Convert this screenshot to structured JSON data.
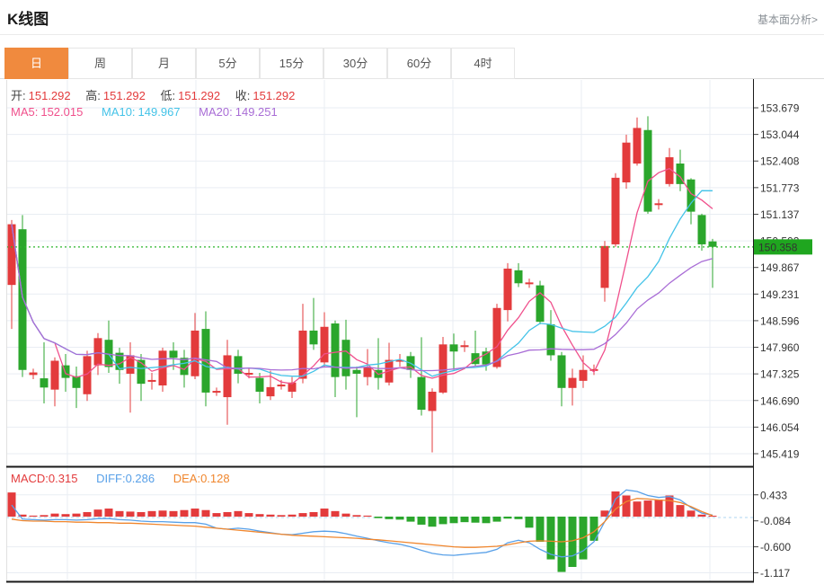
{
  "header": {
    "title": "K线图",
    "link": "基本面分析>"
  },
  "tabs": {
    "items": [
      {
        "label": "日",
        "active": true
      },
      {
        "label": "周",
        "active": false
      },
      {
        "label": "月",
        "active": false
      },
      {
        "label": "5分",
        "active": false
      },
      {
        "label": "15分",
        "active": false
      },
      {
        "label": "30分",
        "active": false
      },
      {
        "label": "60分",
        "active": false
      },
      {
        "label": "4时",
        "active": false
      }
    ]
  },
  "readout": {
    "ohlc_value_color": "#e33b3c",
    "ohlc": [
      {
        "label": "开:",
        "value": "151.292"
      },
      {
        "label": "高:",
        "value": "151.292"
      },
      {
        "label": "低:",
        "value": "151.292"
      },
      {
        "label": "收:",
        "value": "151.292"
      }
    ],
    "ma": [
      {
        "label": "MA5:",
        "value": "152.015",
        "color": "#f0508c"
      },
      {
        "label": "MA10:",
        "value": "149.967",
        "color": "#44c3e8"
      },
      {
        "label": "MA20:",
        "value": "149.251",
        "color": "#a96dd6"
      }
    ],
    "macd": [
      {
        "label": "MACD:",
        "value": "0.315",
        "color": "#e33b3c"
      },
      {
        "label": "DIFF:",
        "value": "0.286",
        "color": "#58a0e8"
      },
      {
        "label": "DEA:",
        "value": "0.128",
        "color": "#f0862d"
      }
    ]
  },
  "colors": {
    "up": "#e33b3c",
    "down": "#2ba62c",
    "ma5": "#f0508c",
    "ma10": "#44c3e8",
    "ma20": "#a96dd6",
    "diff": "#58a0e8",
    "dea": "#f0862d",
    "grid": "#e9edf3",
    "zero_dash": "#aed5f2",
    "price_line": "#2db52d",
    "tag_bg": "#1fa61f",
    "tag_text": "#ffffff",
    "axis_text": "#333333",
    "border_dark": "#1a1a1a",
    "border_light": "#e0e0e0"
  },
  "chart_data": {
    "type": "candlestick",
    "title": "K线图",
    "legend": [
      "MA5",
      "MA10",
      "MA20",
      "MACD",
      "DIFF",
      "DEA"
    ],
    "price_axis_labels": [
      "153.679",
      "153.044",
      "152.408",
      "151.773",
      "151.137",
      "150.502",
      "149.867",
      "149.231",
      "148.596",
      "147.960",
      "147.325",
      "146.690",
      "146.054",
      "145.419"
    ],
    "current_price": "150.358",
    "candle_format": "[open, close, low, high]",
    "candles": [
      [
        149.45,
        150.9,
        148.4,
        151.0
      ],
      [
        150.78,
        147.42,
        147.25,
        151.12
      ],
      [
        147.3,
        147.36,
        147.2,
        147.45
      ],
      [
        147.22,
        147.0,
        146.62,
        148.08
      ],
      [
        146.95,
        147.64,
        146.55,
        147.72
      ],
      [
        147.53,
        147.23,
        146.9,
        147.8
      ],
      [
        147.27,
        146.99,
        146.51,
        147.5
      ],
      [
        146.84,
        147.75,
        146.68,
        147.88
      ],
      [
        147.53,
        148.18,
        147.3,
        148.3
      ],
      [
        148.14,
        147.49,
        147.35,
        148.6
      ],
      [
        147.83,
        147.42,
        147.09,
        147.95
      ],
      [
        147.33,
        147.77,
        146.4,
        148.08
      ],
      [
        147.66,
        147.09,
        146.68,
        147.8
      ],
      [
        147.14,
        147.18,
        146.95,
        147.35
      ],
      [
        147.05,
        147.88,
        146.9,
        147.95
      ],
      [
        147.88,
        147.71,
        147.42,
        148.08
      ],
      [
        147.71,
        147.3,
        147.0,
        147.9
      ],
      [
        147.27,
        148.36,
        147.2,
        148.78
      ],
      [
        148.4,
        146.88,
        146.55,
        148.82
      ],
      [
        146.88,
        146.92,
        146.8,
        147.0
      ],
      [
        146.77,
        147.77,
        146.11,
        148.14
      ],
      [
        147.75,
        147.33,
        147.1,
        147.9
      ],
      [
        147.31,
        147.35,
        147.22,
        147.45
      ],
      [
        147.23,
        146.9,
        146.62,
        147.35
      ],
      [
        146.79,
        147.01,
        146.7,
        147.4
      ],
      [
        147.03,
        147.07,
        146.95,
        147.18
      ],
      [
        146.9,
        147.12,
        146.75,
        147.25
      ],
      [
        147.21,
        148.36,
        147.1,
        149.0
      ],
      [
        148.36,
        148.03,
        147.9,
        149.14
      ],
      [
        147.6,
        148.45,
        147.5,
        148.8
      ],
      [
        148.53,
        147.25,
        146.77,
        148.6
      ],
      [
        148.14,
        147.27,
        146.95,
        148.62
      ],
      [
        147.42,
        147.33,
        146.29,
        147.5
      ],
      [
        147.25,
        147.49,
        147.05,
        147.92
      ],
      [
        147.42,
        147.23,
        146.95,
        148.18
      ],
      [
        147.12,
        147.66,
        147.05,
        148.07
      ],
      [
        147.62,
        147.66,
        147.5,
        147.8
      ],
      [
        147.75,
        147.42,
        147.23,
        147.85
      ],
      [
        147.25,
        146.47,
        146.33,
        148.2
      ],
      [
        146.44,
        146.9,
        145.45,
        146.98
      ],
      [
        146.88,
        148.03,
        146.85,
        148.21
      ],
      [
        148.03,
        147.86,
        147.42,
        148.29
      ],
      [
        147.97,
        148.01,
        147.85,
        148.12
      ],
      [
        147.82,
        147.56,
        147.5,
        148.36
      ],
      [
        147.86,
        147.55,
        147.4,
        147.95
      ],
      [
        147.49,
        148.9,
        147.45,
        149.0
      ],
      [
        148.85,
        149.84,
        148.58,
        149.97
      ],
      [
        149.8,
        149.49,
        149.4,
        149.97
      ],
      [
        149.47,
        149.51,
        149.38,
        149.6
      ],
      [
        149.44,
        148.57,
        148.51,
        149.55
      ],
      [
        148.51,
        147.77,
        147.64,
        148.85
      ],
      [
        147.77,
        146.99,
        146.55,
        147.85
      ],
      [
        146.99,
        147.23,
        146.57,
        147.45
      ],
      [
        147.16,
        147.42,
        146.99,
        147.77
      ],
      [
        147.4,
        147.44,
        147.3,
        147.55
      ],
      [
        149.38,
        150.38,
        149.05,
        150.5
      ],
      [
        150.42,
        152.01,
        150.36,
        152.12
      ],
      [
        151.9,
        152.85,
        151.75,
        153.04
      ],
      [
        152.35,
        153.2,
        152.3,
        153.45
      ],
      [
        153.15,
        151.2,
        151.15,
        153.48
      ],
      [
        151.36,
        151.4,
        151.25,
        151.5
      ],
      [
        151.86,
        152.5,
        151.8,
        152.72
      ],
      [
        152.35,
        151.86,
        151.69,
        152.68
      ],
      [
        151.97,
        151.2,
        150.9,
        152.0
      ],
      [
        151.12,
        150.42,
        150.27,
        151.15
      ],
      [
        150.49,
        150.36,
        149.38,
        150.55
      ]
    ],
    "ma_periods": [
      5,
      10,
      20
    ],
    "macd": {
      "axis_labels": [
        "0.433",
        "-0.084",
        "-0.600",
        "-1.117"
      ],
      "hist": [
        0.48,
        0.04,
        0.02,
        0.03,
        0.06,
        0.05,
        0.06,
        0.09,
        0.14,
        0.16,
        0.11,
        0.1,
        0.09,
        0.11,
        0.12,
        0.11,
        0.13,
        0.16,
        0.13,
        0.07,
        0.09,
        0.11,
        0.07,
        0.05,
        0.04,
        0.03,
        0.04,
        0.07,
        0.09,
        0.16,
        0.11,
        0.06,
        0.03,
        0.02,
        -0.03,
        -0.05,
        -0.06,
        -0.1,
        -0.16,
        -0.2,
        -0.15,
        -0.13,
        -0.11,
        -0.12,
        -0.13,
        -0.1,
        -0.04,
        -0.05,
        -0.22,
        -0.5,
        -0.85,
        -1.1,
        -1.0,
        -0.85,
        -0.48,
        0.12,
        0.5,
        0.42,
        0.3,
        0.32,
        0.34,
        0.42,
        0.23,
        0.12,
        0.04,
        0.01
      ],
      "diff": [
        0.23,
        -0.05,
        -0.06,
        -0.07,
        -0.06,
        -0.06,
        -0.07,
        -0.06,
        -0.04,
        -0.04,
        -0.06,
        -0.07,
        -0.09,
        -0.1,
        -0.1,
        -0.11,
        -0.12,
        -0.12,
        -0.15,
        -0.23,
        -0.25,
        -0.23,
        -0.25,
        -0.29,
        -0.32,
        -0.35,
        -0.36,
        -0.33,
        -0.3,
        -0.29,
        -0.3,
        -0.34,
        -0.39,
        -0.43,
        -0.48,
        -0.52,
        -0.55,
        -0.6,
        -0.67,
        -0.73,
        -0.76,
        -0.77,
        -0.75,
        -0.73,
        -0.71,
        -0.65,
        -0.52,
        -0.47,
        -0.52,
        -0.65,
        -0.75,
        -0.8,
        -0.78,
        -0.68,
        -0.5,
        -0.1,
        0.35,
        0.53,
        0.5,
        0.42,
        0.38,
        0.4,
        0.33,
        0.18,
        0.07,
        0.03
      ],
      "dea": [
        -0.05,
        -0.08,
        -0.09,
        -0.09,
        -0.1,
        -0.1,
        -0.11,
        -0.11,
        -0.12,
        -0.12,
        -0.13,
        -0.13,
        -0.14,
        -0.15,
        -0.16,
        -0.17,
        -0.18,
        -0.19,
        -0.21,
        -0.23,
        -0.25,
        -0.27,
        -0.29,
        -0.31,
        -0.33,
        -0.35,
        -0.37,
        -0.38,
        -0.39,
        -0.4,
        -0.41,
        -0.42,
        -0.43,
        -0.45,
        -0.46,
        -0.48,
        -0.5,
        -0.52,
        -0.54,
        -0.56,
        -0.58,
        -0.6,
        -0.61,
        -0.61,
        -0.6,
        -0.59,
        -0.56,
        -0.52,
        -0.49,
        -0.48,
        -0.49,
        -0.5,
        -0.48,
        -0.42,
        -0.3,
        -0.1,
        0.15,
        0.3,
        0.36,
        0.35,
        0.33,
        0.32,
        0.28,
        0.2,
        0.1,
        0.02
      ]
    }
  }
}
